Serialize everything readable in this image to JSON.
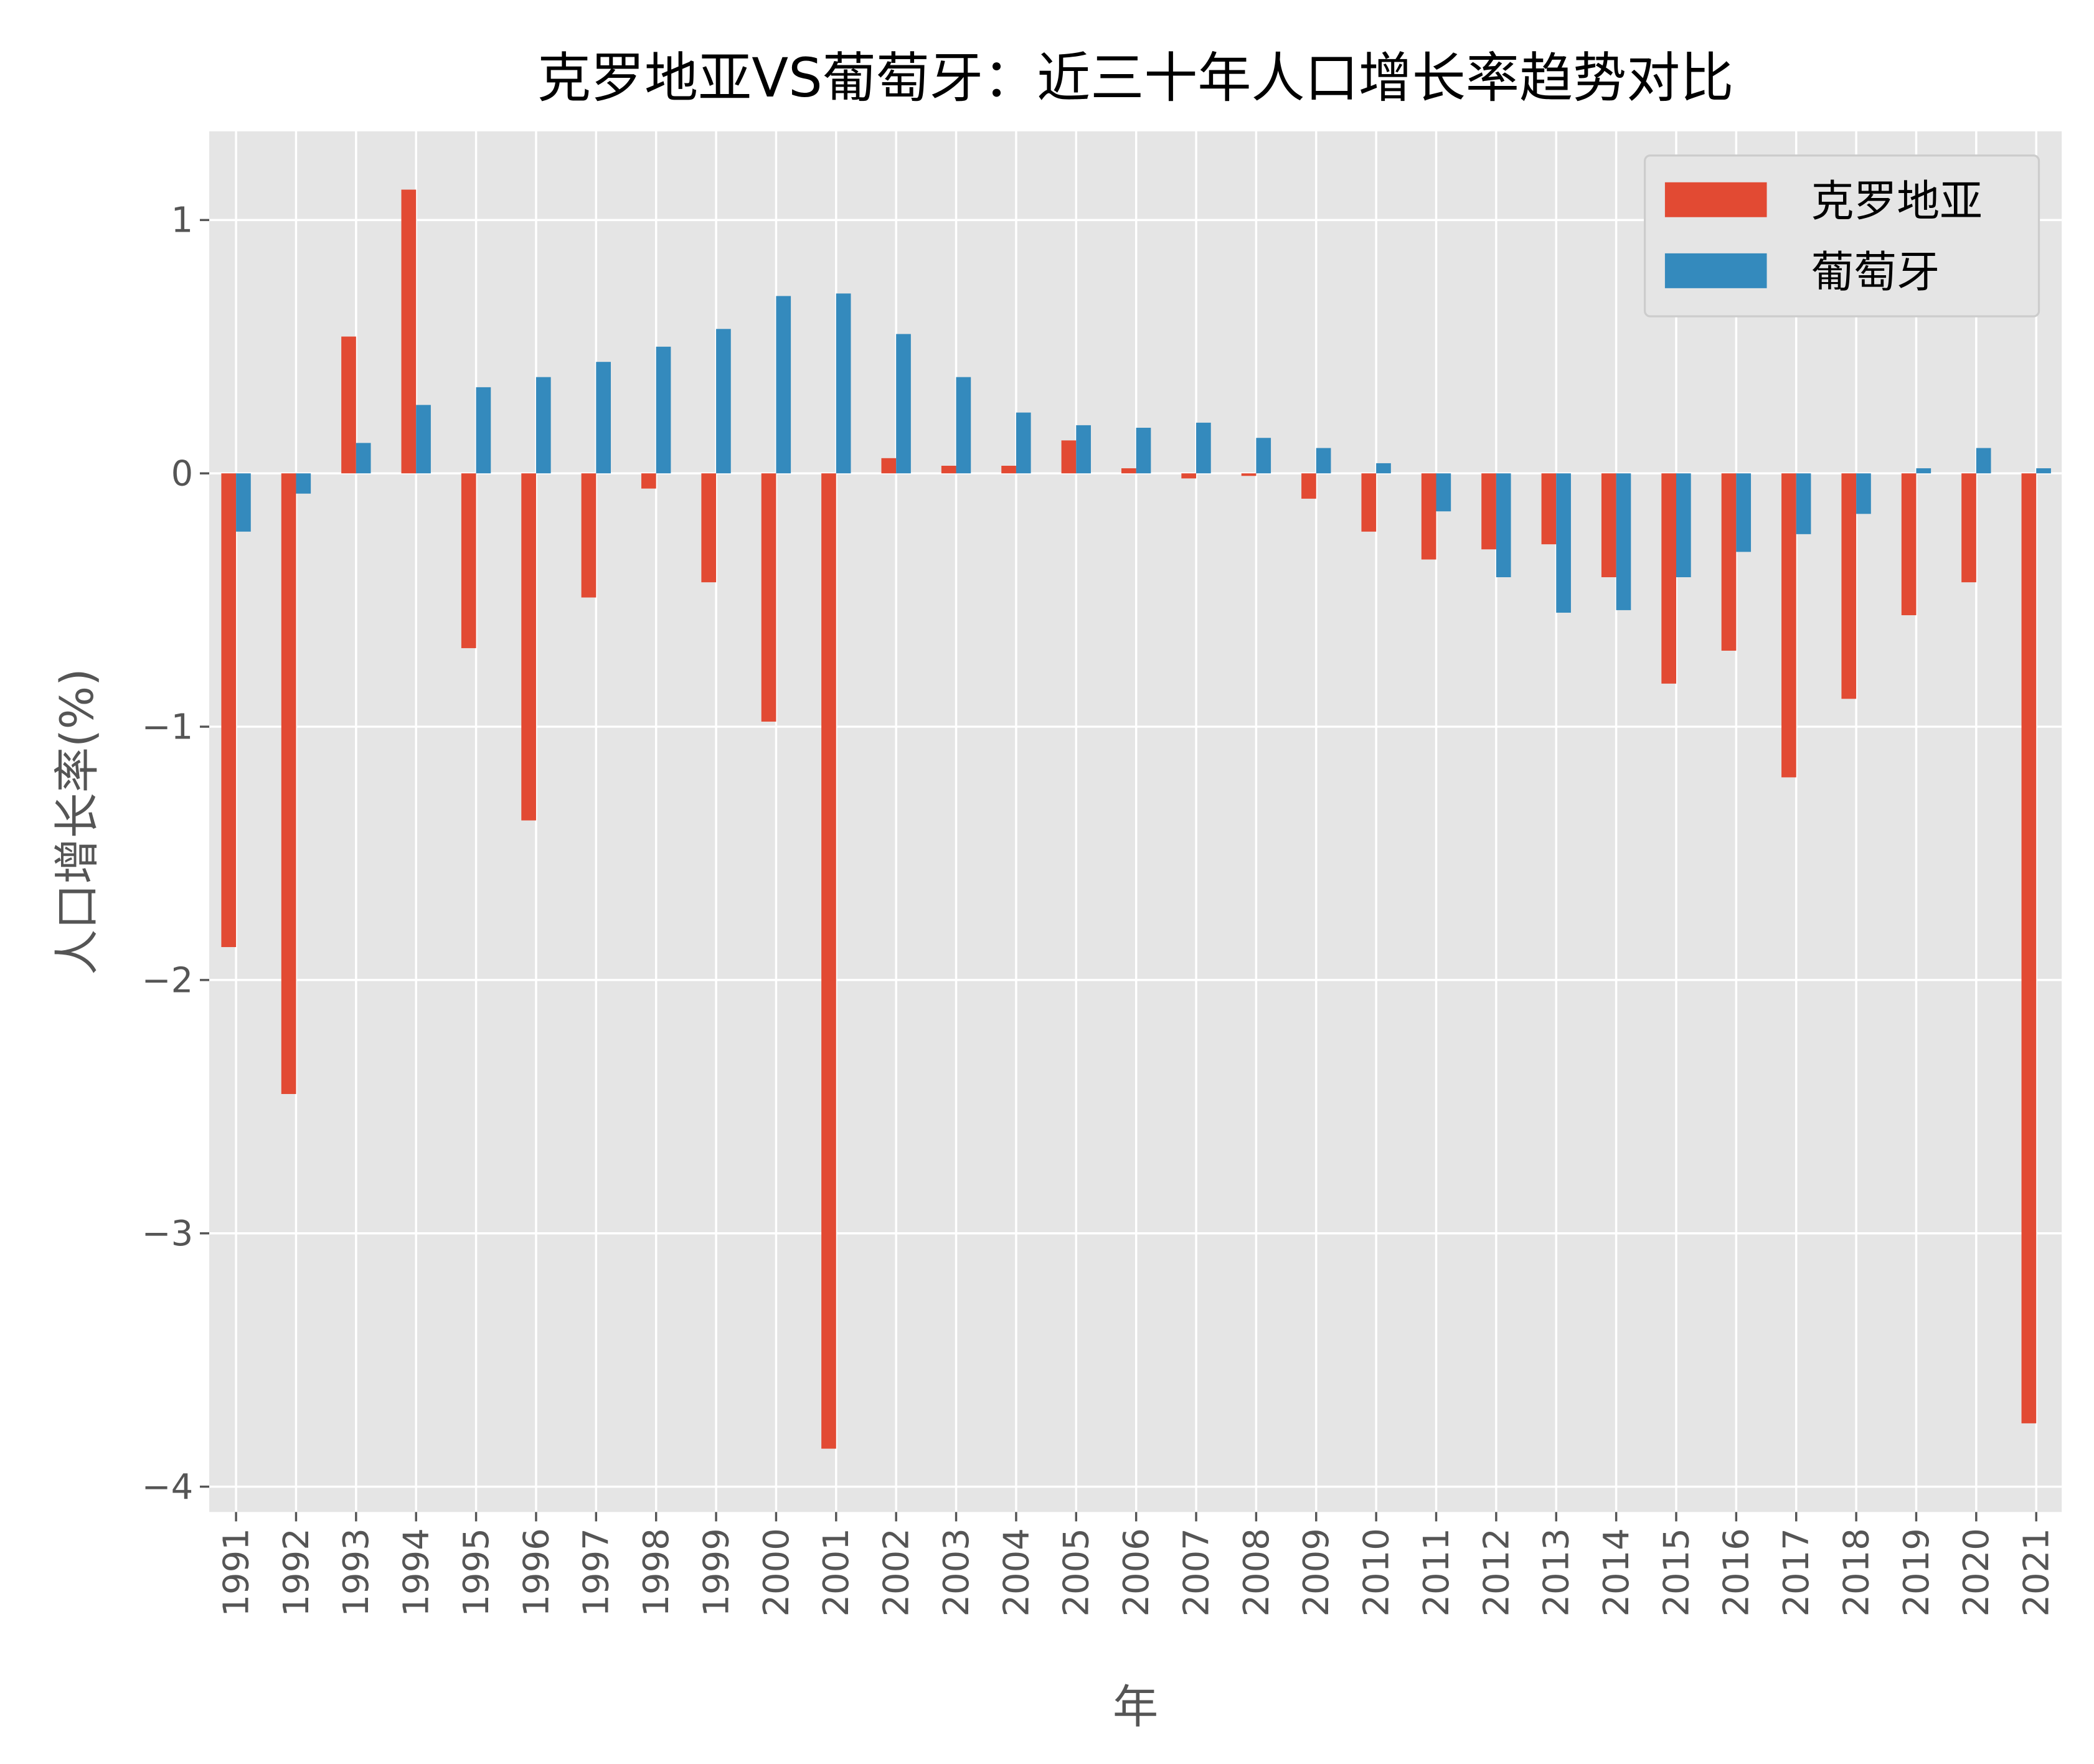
{
  "chart_data": {
    "type": "bar",
    "title": "克罗地亚VS葡萄牙：近三十年人口增长率趋势对比",
    "xlabel": "年",
    "ylabel": "人口增长率(%)",
    "ylim": [
      -4.1,
      1.35
    ],
    "yticks": [
      1,
      0,
      -1,
      -2,
      -3,
      -4
    ],
    "ytick_labels": [
      "1",
      "0",
      "−1",
      "−2",
      "−3",
      "−4"
    ],
    "grid": true,
    "legend_position": "top-right",
    "categories": [
      "1991",
      "1992",
      "1993",
      "1994",
      "1995",
      "1996",
      "1997",
      "1998",
      "1999",
      "2000",
      "2001",
      "2002",
      "2003",
      "2004",
      "2005",
      "2006",
      "2007",
      "2008",
      "2009",
      "2010",
      "2011",
      "2012",
      "2013",
      "2014",
      "2015",
      "2016",
      "2017",
      "2018",
      "2019",
      "2020",
      "2021"
    ],
    "series": [
      {
        "name": "克罗地亚",
        "color": "#E24A33",
        "values": [
          -1.87,
          -2.45,
          0.54,
          1.12,
          -0.69,
          -1.37,
          -0.49,
          -0.06,
          -0.43,
          -0.98,
          -3.85,
          0.06,
          0.03,
          0.03,
          0.13,
          0.02,
          -0.02,
          -0.01,
          -0.1,
          -0.23,
          -0.34,
          -0.3,
          -0.28,
          -0.41,
          -0.83,
          -0.7,
          -1.2,
          -0.89,
          -0.56,
          -0.43,
          -3.75
        ]
      },
      {
        "name": "葡萄牙",
        "color": "#348ABD",
        "values": [
          -0.23,
          -0.08,
          0.12,
          0.27,
          0.34,
          0.38,
          0.44,
          0.5,
          0.57,
          0.7,
          0.71,
          0.55,
          0.38,
          0.24,
          0.19,
          0.18,
          0.2,
          0.14,
          0.1,
          0.04,
          -0.15,
          -0.41,
          -0.55,
          -0.54,
          -0.41,
          -0.31,
          -0.24,
          -0.16,
          0.02,
          0.1,
          0.02
        ]
      }
    ]
  }
}
